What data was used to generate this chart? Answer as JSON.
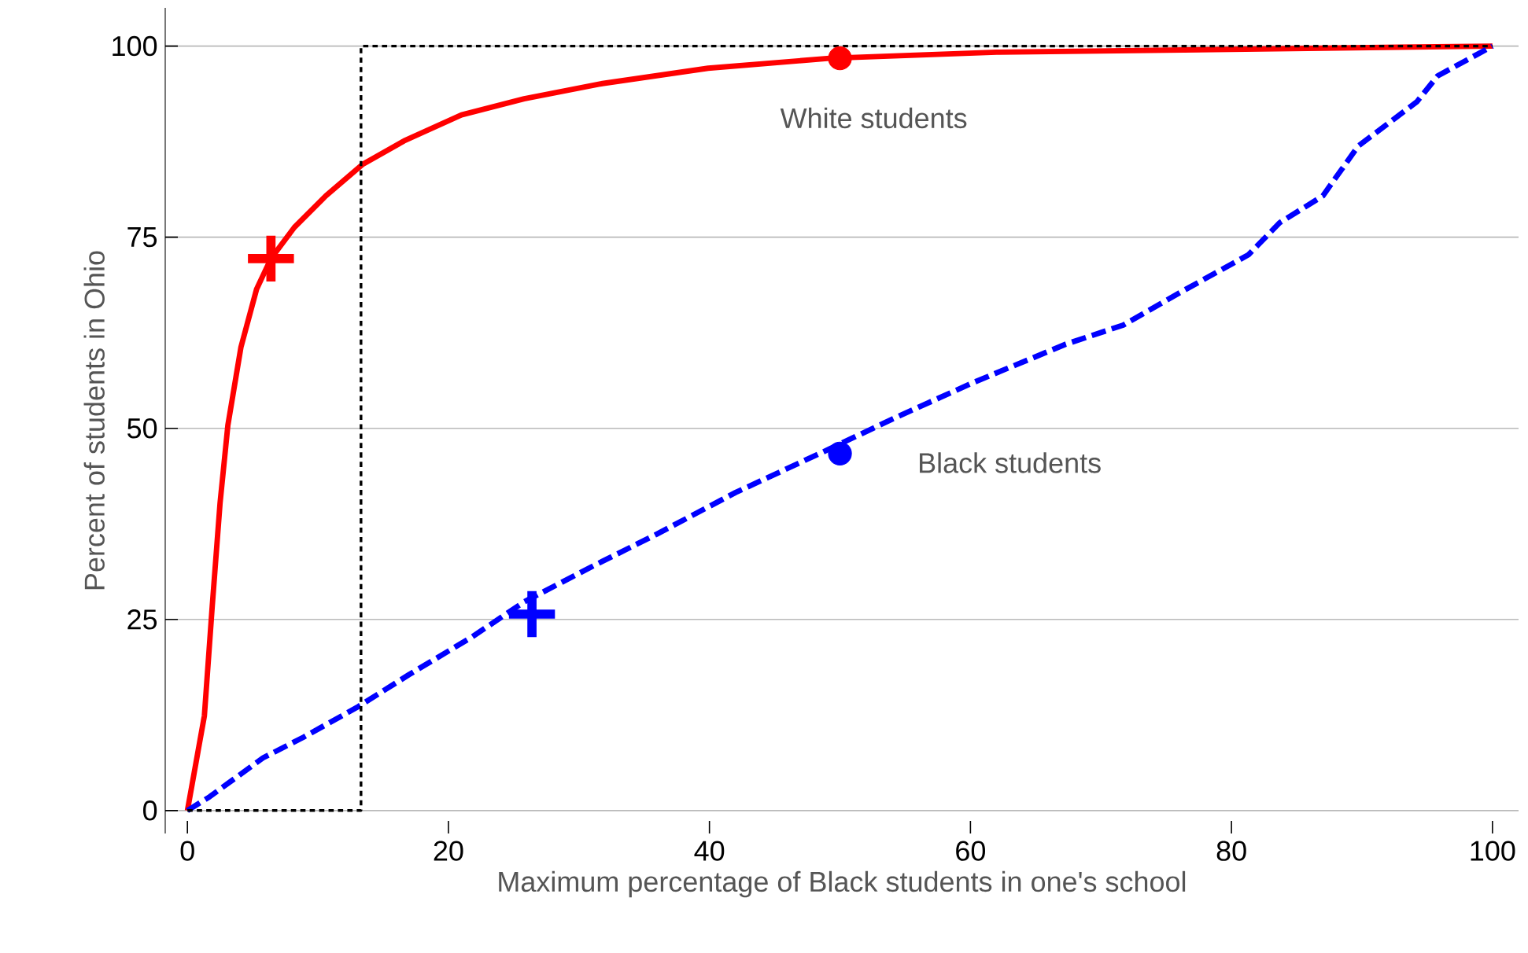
{
  "chart_data": {
    "type": "line",
    "xlabel": "Maximum percentage of Black students in one's school",
    "ylabel": "Percent of students in Ohio",
    "xlim": [
      -1.7,
      102
    ],
    "ylim": [
      -3,
      105
    ],
    "xticks": [
      0,
      20,
      40,
      60,
      80,
      100
    ],
    "yticks": [
      0,
      25,
      50,
      75,
      100
    ],
    "grid": "y",
    "series": [
      {
        "name": "White students",
        "color": "#ff0000",
        "line_style": "solid",
        "x": [
          0,
          1.3,
          1.9,
          2.5,
          3.1,
          4.1,
          5.3,
          6.4,
          8.2,
          10.6,
          13.4,
          16.6,
          21.0,
          25.8,
          31.8,
          39.9,
          49.2,
          62.0,
          100
        ],
        "values": [
          0,
          12.4,
          26.7,
          40.2,
          50.4,
          60.6,
          68.2,
          72.2,
          76.3,
          80.4,
          84.5,
          87.6,
          91.0,
          93.1,
          95.1,
          97.1,
          98.4,
          99.2,
          100
        ]
      },
      {
        "name": "Black students",
        "color": "#0000ff",
        "line_style": "dashed",
        "x": [
          0,
          1.7,
          5.8,
          8.9,
          13.0,
          17.0,
          21.8,
          25.8,
          31.1,
          35.9,
          42.0,
          49.2,
          54.0,
          60.1,
          67.3,
          71.7,
          76.1,
          81.3,
          83.7,
          87.0,
          89.7,
          94.2,
          95.8,
          100
        ],
        "values": [
          0,
          1.8,
          6.9,
          9.6,
          13.5,
          17.8,
          22.7,
          27.3,
          32.0,
          36.1,
          41.6,
          47.3,
          51.2,
          55.9,
          61.0,
          63.5,
          67.8,
          72.7,
          76.9,
          80.4,
          86.9,
          92.7,
          96.1,
          100
        ]
      },
      {
        "color": "#000000",
        "line_style": "dotted",
        "x": [
          0,
          13.3,
          13.3,
          100
        ],
        "values": [
          0,
          0,
          100,
          100
        ]
      },
      {
        "type": "scatter",
        "color": "#ff0000",
        "marker": "cross",
        "x": [
          6.4
        ],
        "values": [
          72.2
        ]
      },
      {
        "type": "scatter",
        "color": "#ff0000",
        "marker": "circle",
        "x": [
          50
        ],
        "values": [
          98.4
        ]
      },
      {
        "type": "scatter",
        "color": "#0000ff",
        "marker": "cross",
        "x": [
          26.4
        ],
        "values": [
          25.7
        ]
      },
      {
        "type": "scatter",
        "color": "#0000ff",
        "marker": "circle",
        "x": [
          50
        ],
        "values": [
          46.7
        ]
      }
    ]
  }
}
